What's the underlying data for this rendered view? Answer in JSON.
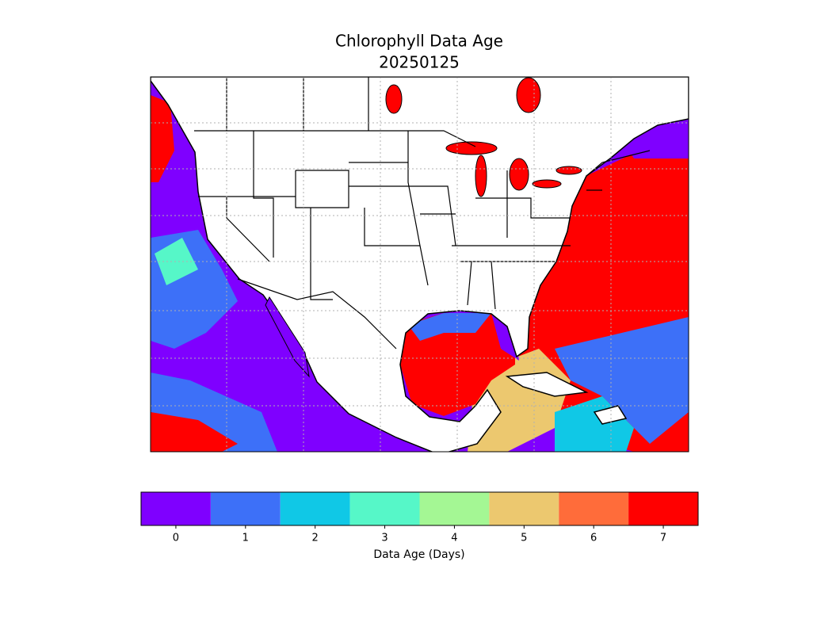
{
  "title": "Chlorophyll Data Age",
  "subtitle": "20250125",
  "colorbar": {
    "label": "Data Age (Days)",
    "ticks": [
      0,
      1,
      2,
      3,
      4,
      5,
      6,
      7
    ],
    "colors": [
      "#7f00ff",
      "#3d70f8",
      "#10c8e6",
      "#56f7c8",
      "#a4f794",
      "#ecc86f",
      "#ff6c3a",
      "#ff0000"
    ]
  }
}
